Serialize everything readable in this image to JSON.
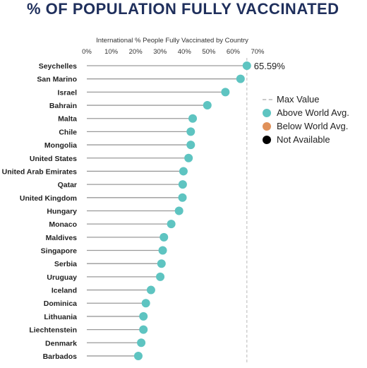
{
  "page": {
    "title": "% OF POPULATION FULLY VACCINATED"
  },
  "colors": {
    "above": "#5ec4c1",
    "below": "#e0915a",
    "not_available": "#000000",
    "title": "#1f2f5c",
    "stem": "#9a9a9a",
    "max_line": "#c9c9c9"
  },
  "legend": {
    "max_value": "Max Value",
    "above": "Above World Avg.",
    "below": "Below World Avg.",
    "not_available": "Not Available"
  },
  "chart_data": {
    "type": "lollipop",
    "title": "International % People Fully Vaccinated by Country",
    "xlabel": "",
    "ylabel": "",
    "xlim": [
      0,
      70
    ],
    "x_ticks": [
      "0%",
      "10%",
      "20%",
      "30%",
      "40%",
      "50%",
      "60%",
      "70%"
    ],
    "max_label": "65.59%",
    "max_value": 65.59,
    "grid": false,
    "legend_position": "right",
    "categories": [
      "Seychelles",
      "San Marino",
      "Israel",
      "Bahrain",
      "Malta",
      "Chile",
      "Mongolia",
      "United States",
      "United Arab Emirates",
      "Qatar",
      "United Kingdom",
      "Hungary",
      "Monaco",
      "Maldives",
      "Singapore",
      "Serbia",
      "Uruguay",
      "Iceland",
      "Dominica",
      "Lithuania",
      "Liechtenstein",
      "Denmark",
      "Barbados"
    ],
    "values": [
      65.59,
      63.0,
      56.8,
      49.4,
      43.4,
      42.6,
      42.6,
      41.7,
      39.6,
      39.3,
      39.2,
      37.8,
      34.6,
      31.6,
      31.1,
      30.6,
      30.1,
      26.3,
      24.2,
      23.2,
      23.2,
      22.3,
      21.1
    ],
    "status": [
      "above",
      "above",
      "above",
      "above",
      "above",
      "above",
      "above",
      "above",
      "above",
      "above",
      "above",
      "above",
      "above",
      "above",
      "above",
      "above",
      "above",
      "above",
      "above",
      "above",
      "above",
      "above",
      "above"
    ]
  }
}
